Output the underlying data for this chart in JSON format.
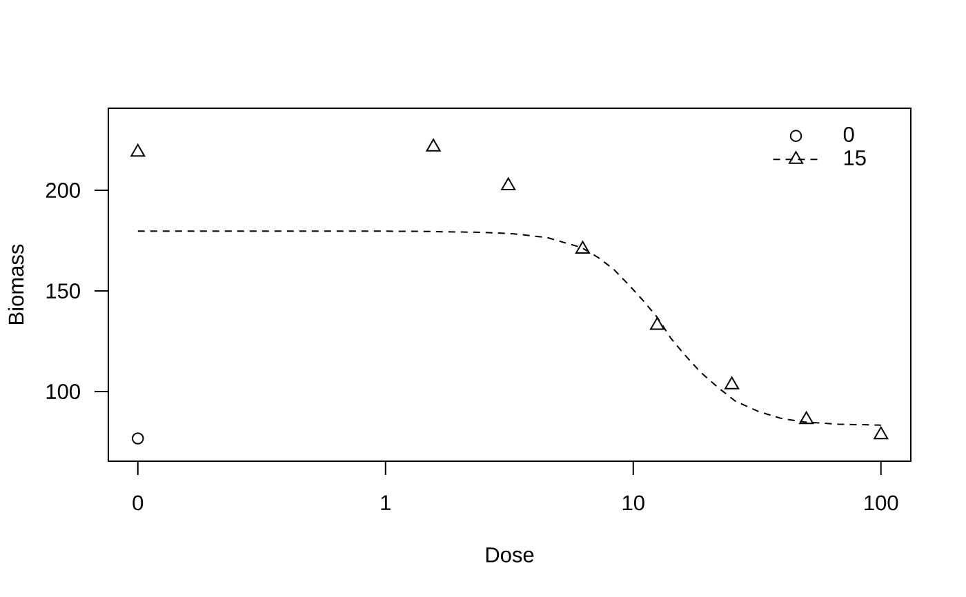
{
  "chart_data": {
    "type": "scatter",
    "xlabel": "Dose",
    "ylabel": "Biomass",
    "log": "x",
    "xlim": [
      0.076,
      132
    ],
    "ylim": [
      65.4,
      240.8
    ],
    "xticks": [
      {
        "value": 0.1,
        "label": "0"
      },
      1,
      10,
      100
    ],
    "yticks": [
      100,
      150,
      200
    ],
    "legend": "top right",
    "series": [
      {
        "name": "0",
        "marker": "circle",
        "color": "#000000",
        "x": [
          0.1
        ],
        "values": [
          76.7
        ]
      },
      {
        "name": "15",
        "marker": "triangle",
        "color": "#000000",
        "x": [
          0.1,
          1.56,
          3.13,
          6.25,
          12.5,
          25,
          50,
          100
        ],
        "values": [
          219.0,
          221.5,
          202.3,
          170.7,
          132.9,
          103.3,
          86.0,
          78.5
        ]
      },
      {
        "type": "line",
        "line_style": "dashed",
        "marker": "none",
        "color": "#000000",
        "x": [
          0.1,
          1,
          1.4,
          2.5,
          3.3,
          4.5,
          6.2,
          7.2,
          8.3,
          9.6,
          11,
          12.5,
          14.2,
          16.1,
          18.7,
          22.2,
          25.8,
          31.9,
          39.4,
          48.8,
          67.3,
          100
        ],
        "values": [
          179.7,
          179.7,
          179.6,
          179.1,
          178.4,
          176.5,
          171.5,
          166.7,
          161.0,
          153.0,
          145.0,
          136.9,
          126.4,
          118.4,
          109.6,
          101.6,
          95.3,
          90.2,
          86.7,
          84.9,
          83.8,
          83.3
        ]
      }
    ]
  }
}
